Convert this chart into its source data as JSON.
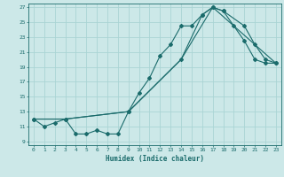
{
  "title": "",
  "xlabel": "Humidex (Indice chaleur)",
  "bg_color": "#cce8e8",
  "grid_color": "#aad4d4",
  "line_color": "#1a6b6b",
  "xlim": [
    -0.5,
    23.5
  ],
  "ylim": [
    8.5,
    27.5
  ],
  "xticks": [
    0,
    1,
    2,
    3,
    4,
    5,
    6,
    7,
    8,
    9,
    10,
    11,
    12,
    13,
    14,
    15,
    16,
    17,
    18,
    19,
    20,
    21,
    22,
    23
  ],
  "yticks": [
    9,
    11,
    13,
    15,
    17,
    19,
    21,
    23,
    25,
    27
  ],
  "line1_x": [
    0,
    1,
    2,
    3,
    4,
    5,
    6,
    7,
    8,
    9,
    10,
    11,
    12,
    13,
    14,
    15,
    16,
    17,
    18,
    19,
    20,
    21,
    22,
    23
  ],
  "line1_y": [
    12.0,
    11.0,
    11.5,
    12.0,
    10.0,
    10.0,
    10.5,
    10.0,
    10.0,
    13.0,
    15.5,
    17.5,
    20.5,
    22.0,
    24.5,
    24.5,
    26.0,
    27.0,
    26.5,
    24.5,
    22.5,
    20.0,
    19.5,
    19.5
  ],
  "line2_x": [
    0,
    3,
    9,
    14,
    16,
    17,
    18,
    20,
    21,
    22,
    23
  ],
  "line2_y": [
    12.0,
    12.0,
    13.0,
    20.0,
    26.0,
    27.0,
    26.5,
    24.5,
    22.0,
    20.0,
    19.5
  ],
  "line3_x": [
    0,
    3,
    9,
    14,
    17,
    19,
    23
  ],
  "line3_y": [
    12.0,
    12.0,
    13.0,
    20.0,
    27.0,
    24.5,
    19.5
  ]
}
